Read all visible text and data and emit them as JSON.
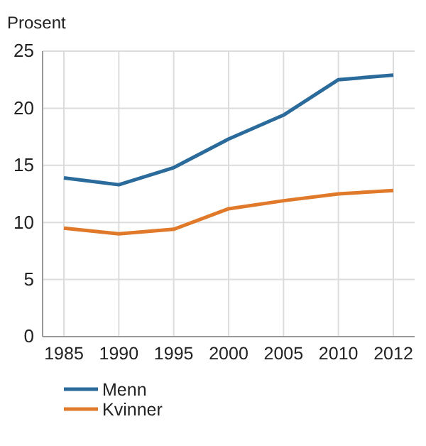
{
  "chart_data": {
    "type": "line",
    "ylabel": "Prosent",
    "categories": [
      "1985",
      "1990",
      "1995",
      "2000",
      "2005",
      "2010",
      "2012"
    ],
    "series": [
      {
        "name": "Menn",
        "color": "#2a6b9b",
        "values": [
          13.9,
          13.3,
          14.8,
          17.3,
          19.4,
          22.5,
          22.9
        ]
      },
      {
        "name": "Kvinner",
        "color": "#e07a2a",
        "values": [
          9.5,
          9.0,
          9.4,
          11.2,
          11.9,
          12.5,
          12.8
        ]
      }
    ],
    "ylim": [
      0,
      25
    ],
    "yticks": [
      0,
      5,
      10,
      15,
      20,
      25
    ],
    "grid": true,
    "legend": "bottom",
    "marker": "none",
    "line_style": "solid"
  }
}
